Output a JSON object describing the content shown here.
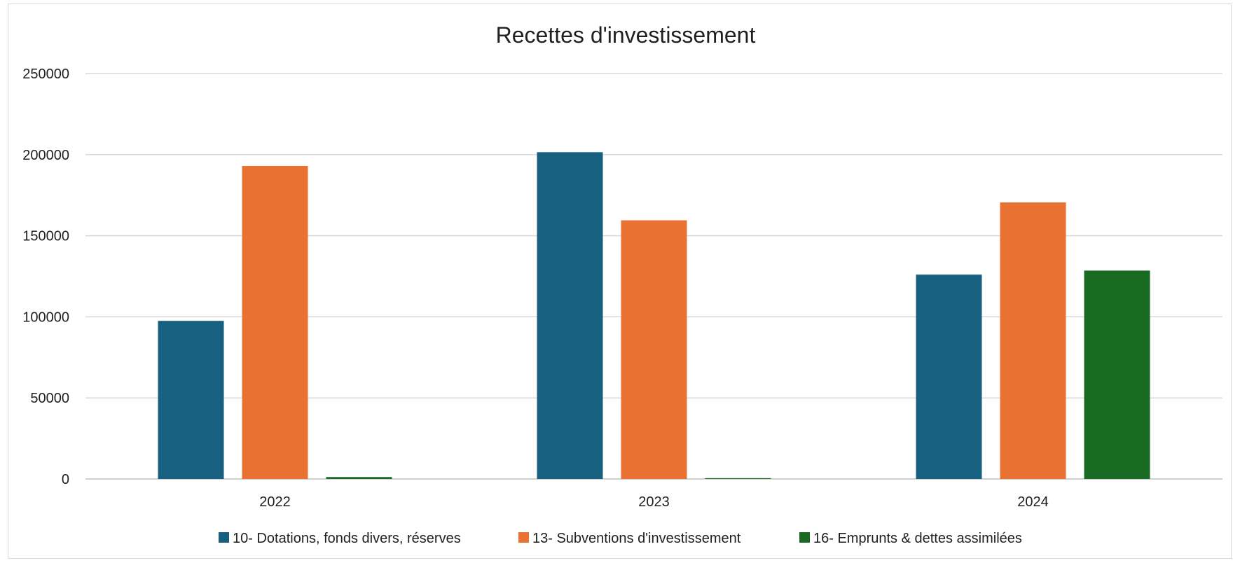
{
  "chart_data": {
    "type": "bar",
    "title": "Recettes d'investissement",
    "xlabel": "",
    "ylabel": "",
    "categories": [
      "2022",
      "2023",
      "2024"
    ],
    "ylim": [
      0,
      250000
    ],
    "yticks": [
      0,
      50000,
      100000,
      150000,
      200000,
      250000
    ],
    "grid": true,
    "legend_position": "bottom",
    "series": [
      {
        "name": "10- Dotations, fonds divers, réserves",
        "color": "#17607f",
        "values": [
          97500,
          201500,
          126000
        ]
      },
      {
        "name": "13- Subventions d'investissement",
        "color": "#e97132",
        "values": [
          193000,
          159500,
          170500
        ]
      },
      {
        "name": "16- Emprunts & dettes assimilées",
        "color": "#196b24",
        "values": [
          1200,
          500,
          128500
        ]
      }
    ]
  }
}
